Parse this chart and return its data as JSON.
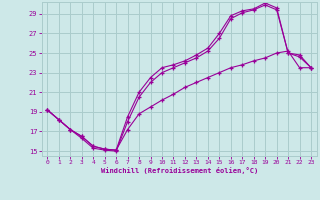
{
  "xlabel": "Windchill (Refroidissement éolien,°C)",
  "bg_color": "#cde8e8",
  "line_color": "#990099",
  "grid_color": "#aacccc",
  "xlim": [
    -0.5,
    23.5
  ],
  "ylim": [
    14.5,
    30.2
  ],
  "yticks": [
    15,
    17,
    19,
    21,
    23,
    25,
    27,
    29
  ],
  "xticks": [
    0,
    1,
    2,
    3,
    4,
    5,
    6,
    7,
    8,
    9,
    10,
    11,
    12,
    13,
    14,
    15,
    16,
    17,
    18,
    19,
    20,
    21,
    22,
    23
  ],
  "lines": [
    {
      "x": [
        0,
        1,
        2,
        3,
        4,
        5,
        6,
        7,
        8,
        9,
        10,
        11,
        12,
        13,
        14,
        15,
        16,
        17,
        18,
        19,
        20,
        21,
        22,
        23
      ],
      "y": [
        19.2,
        18.2,
        17.2,
        16.5,
        15.5,
        15.2,
        15.1,
        18.5,
        21.0,
        22.5,
        23.5,
        23.8,
        24.2,
        24.8,
        25.5,
        27.0,
        28.8,
        29.3,
        29.5,
        30.1,
        29.6,
        25.0,
        24.8,
        23.5
      ]
    },
    {
      "x": [
        0,
        1,
        2,
        3,
        4,
        5,
        6,
        7,
        8,
        9,
        10,
        11,
        12,
        13,
        14,
        15,
        16,
        17,
        18,
        19,
        20,
        21,
        22,
        23
      ],
      "y": [
        19.2,
        18.2,
        17.2,
        16.3,
        15.3,
        15.1,
        15.0,
        18.0,
        20.5,
        22.0,
        23.0,
        23.5,
        24.0,
        24.5,
        25.2,
        26.5,
        28.5,
        29.1,
        29.4,
        29.9,
        29.4,
        25.0,
        24.6,
        23.5
      ]
    },
    {
      "x": [
        0,
        1,
        2,
        3,
        4,
        5,
        6,
        7,
        8,
        9,
        10,
        11,
        12,
        13,
        14,
        15,
        16,
        17,
        18,
        19,
        20,
        21,
        22,
        23
      ],
      "y": [
        19.2,
        18.2,
        17.2,
        16.5,
        15.5,
        15.2,
        15.1,
        17.2,
        18.8,
        19.5,
        20.2,
        20.8,
        21.5,
        22.0,
        22.5,
        23.0,
        23.5,
        23.8,
        24.2,
        24.5,
        25.0,
        25.2,
        23.5,
        23.5
      ]
    }
  ]
}
